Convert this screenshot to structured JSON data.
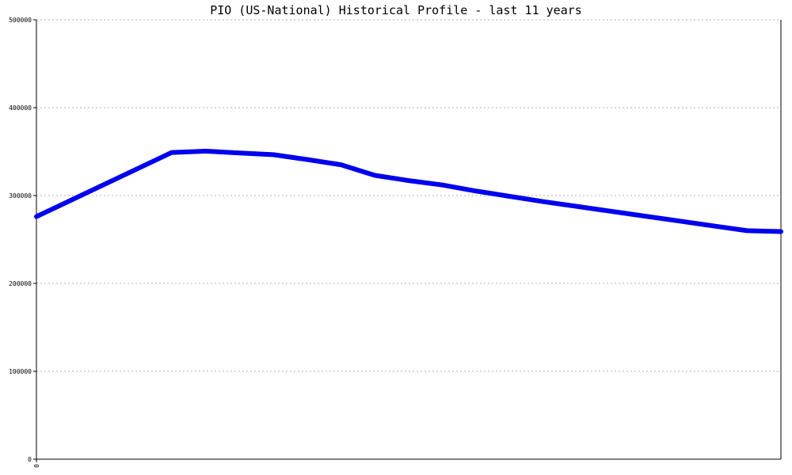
{
  "chart_data": {
    "type": "line",
    "title": "PIO (US-National) Historical Profile - last 11 years",
    "xlabel": "",
    "ylabel": "",
    "ylim": [
      0,
      500000
    ],
    "xlim": [
      0,
      11
    ],
    "y_ticks": [
      "0",
      "100000",
      "200000",
      "300000",
      "400000",
      "500000"
    ],
    "x_ticks": [
      "0"
    ],
    "grid": true,
    "series": [
      {
        "color": "#0000ee",
        "x": [
          0,
          2,
          2.5,
          3,
          3.5,
          4,
          4.5,
          5,
          5.5,
          6,
          6.5,
          7,
          7.5,
          8,
          8.5,
          9,
          9.5,
          10,
          10.5,
          11
        ],
        "y": [
          276000,
          349000,
          350500,
          348500,
          346500,
          341000,
          335000,
          323000,
          317000,
          312000,
          305000,
          299000,
          293000,
          287500,
          282000,
          276500,
          271000,
          265500,
          260000,
          259000
        ]
      }
    ]
  }
}
